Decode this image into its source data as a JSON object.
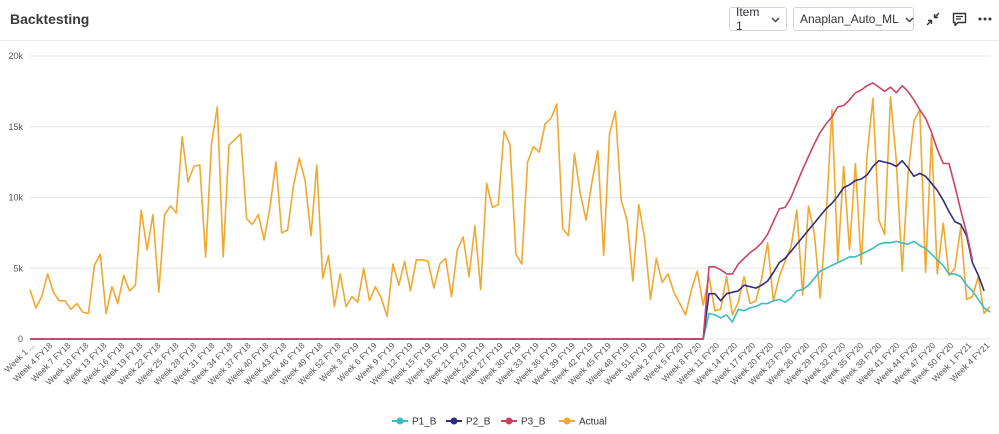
{
  "header": {
    "title": "Backtesting",
    "item_select": {
      "value": "Item 1"
    },
    "model_select": {
      "value": "Anaplan_Auto_ML"
    },
    "icons": [
      "collapse-icon",
      "comment-icon",
      "more-icon"
    ]
  },
  "chart_data": {
    "type": "line",
    "title": "",
    "xlabel": "",
    "ylabel": "",
    "ylim": [
      0,
      20000
    ],
    "y_ticks": [
      0,
      5000,
      10000,
      15000,
      20000
    ],
    "y_tick_labels": [
      "0",
      "5k",
      "10k",
      "15k",
      "20k"
    ],
    "grid": true,
    "legend": "bottom-center",
    "x_tick_labels": [
      "Week 1 ...",
      "Week 4 FY18",
      "Week 7 FY18",
      "Week 10 FY18",
      "Week 13 FY18",
      "Week 16 FY18",
      "Week 19 FY18",
      "Week 22 FY18",
      "Week 25 FY18",
      "Week 28 FY18",
      "Week 31 FY18",
      "Week 34 FY18",
      "Week 37 FY18",
      "Week 40 FY18",
      "Week 43 FY18",
      "Week 46 FY18",
      "Week 49 FY18",
      "Week 52 FY18",
      "Week 3 FY19",
      "Week 6 FY19",
      "Week 9 FY19",
      "Week 12 FY19",
      "Week 15 FY19",
      "Week 18 FY19",
      "Week 21 FY19",
      "Week 24 FY19",
      "Week 27 FY19",
      "Week 30 FY19",
      "Week 33 FY19",
      "Week 36 FY19",
      "Week 39 FY19",
      "Week 42 FY19",
      "Week 45 FY19",
      "Week 48 FY19",
      "Week 51 FY19",
      "Week 2 FY20",
      "Week 5 FY20",
      "Week 8 FY20",
      "Week 11 FY20",
      "Week 14 FY20",
      "Week 17 FY20",
      "Week 20 FY20",
      "Week 23 FY20",
      "Week 26 FY20",
      "Week 29 FY20",
      "Week 32 FY20",
      "Week 35 FY20",
      "Week 38 FY20",
      "Week 41 FY20",
      "Week 44 FY20",
      "Week 47 FY20",
      "Week 50 FY20",
      "Week 1 FY21",
      "Week 4 FY21"
    ],
    "series": [
      {
        "name": "Actual",
        "color": "#f0a830",
        "values": [
          3500,
          2200,
          3000,
          4600,
          3300,
          2700,
          2700,
          2100,
          2500,
          1900,
          1800,
          5200,
          6000,
          1800,
          3700,
          2500,
          4500,
          3400,
          3800,
          9100,
          6300,
          8800,
          3300,
          8800,
          9400,
          8900,
          14300,
          11100,
          12200,
          12300,
          5800,
          13800,
          16400,
          5800,
          13700,
          14100,
          14500,
          8500,
          8100,
          8800,
          7000,
          9300,
          12500,
          7500,
          7700,
          10800,
          12800,
          11200,
          7300,
          12300,
          4300,
          5900,
          2300,
          4600,
          2300,
          3000,
          2600,
          5000,
          2700,
          3700,
          2900,
          1600,
          5300,
          3800,
          5500,
          3400,
          5600,
          5600,
          5500,
          3600,
          5300,
          5700,
          3000,
          6300,
          7200,
          4400,
          8000,
          3500,
          11000,
          9300,
          9500,
          14700,
          13700,
          6000,
          5300,
          12500,
          13600,
          13200,
          15200,
          15600,
          16600,
          7800,
          7300,
          13100,
          10300,
          8400,
          11100,
          13300,
          5900,
          14500,
          16100,
          9800,
          8400,
          4100,
          9500,
          7100,
          2800,
          5700,
          4000,
          4600,
          3300,
          2500,
          1700,
          3500,
          4800,
          2400,
          4400,
          2000,
          2100,
          4400,
          1700,
          2600,
          4400,
          2500,
          2700,
          4300,
          6800,
          2700,
          4400,
          5500,
          6500,
          9100,
          3100,
          9400,
          7400,
          2900,
          8600,
          16200,
          5500,
          12200,
          6300,
          12400,
          5300,
          13000,
          17000,
          8400,
          7400,
          17100,
          12600,
          4800,
          11600,
          15400,
          16200,
          4700,
          14400,
          4600,
          8200,
          4500,
          5000,
          7900,
          2800,
          3000,
          4400,
          1800,
          2300
        ]
      },
      {
        "name": "P1_B",
        "color": "#3bbdc1",
        "values": [
          0,
          0,
          0,
          0,
          0,
          0,
          0,
          0,
          0,
          0,
          0,
          0,
          0,
          0,
          0,
          0,
          0,
          0,
          0,
          0,
          0,
          0,
          0,
          0,
          0,
          0,
          0,
          0,
          0,
          0,
          0,
          0,
          0,
          0,
          0,
          0,
          0,
          0,
          0,
          0,
          0,
          0,
          0,
          0,
          0,
          0,
          0,
          0,
          0,
          0,
          0,
          0,
          0,
          0,
          0,
          0,
          0,
          0,
          0,
          0,
          0,
          0,
          0,
          0,
          0,
          0,
          0,
          0,
          0,
          0,
          0,
          0,
          0,
          0,
          0,
          0,
          0,
          0,
          0,
          0,
          0,
          0,
          0,
          0,
          0,
          0,
          0,
          0,
          0,
          0,
          0,
          0,
          0,
          0,
          0,
          0,
          0,
          0,
          0,
          0,
          0,
          0,
          0,
          0,
          0,
          0,
          0,
          0,
          0,
          0,
          0,
          0,
          0,
          0,
          0,
          0,
          1800,
          1700,
          1500,
          1700,
          1200,
          2100,
          2000,
          2200,
          2300,
          2500,
          2500,
          2700,
          2800,
          2600,
          2900,
          3400,
          3500,
          3800,
          4300,
          4800,
          5000,
          5200,
          5400,
          5600,
          5800,
          5800,
          6000,
          6200,
          6400,
          6700,
          6800,
          6800,
          6900,
          6800,
          6700,
          6900,
          6600,
          6400,
          6000,
          5600,
          5200,
          4600,
          4600,
          4400,
          3800,
          3400,
          2800,
          2200,
          1900
        ]
      },
      {
        "name": "P2_B",
        "color": "#2f2d7a",
        "values": [
          0,
          0,
          0,
          0,
          0,
          0,
          0,
          0,
          0,
          0,
          0,
          0,
          0,
          0,
          0,
          0,
          0,
          0,
          0,
          0,
          0,
          0,
          0,
          0,
          0,
          0,
          0,
          0,
          0,
          0,
          0,
          0,
          0,
          0,
          0,
          0,
          0,
          0,
          0,
          0,
          0,
          0,
          0,
          0,
          0,
          0,
          0,
          0,
          0,
          0,
          0,
          0,
          0,
          0,
          0,
          0,
          0,
          0,
          0,
          0,
          0,
          0,
          0,
          0,
          0,
          0,
          0,
          0,
          0,
          0,
          0,
          0,
          0,
          0,
          0,
          0,
          0,
          0,
          0,
          0,
          0,
          0,
          0,
          0,
          0,
          0,
          0,
          0,
          0,
          0,
          0,
          0,
          0,
          0,
          0,
          0,
          0,
          0,
          0,
          0,
          0,
          0,
          0,
          0,
          0,
          0,
          0,
          0,
          0,
          0,
          0,
          0,
          0,
          0,
          0,
          0,
          3200,
          3200,
          2700,
          3200,
          3300,
          3400,
          3800,
          3700,
          3600,
          3800,
          4100,
          4700,
          5400,
          5700,
          6200,
          6700,
          7200,
          7700,
          8200,
          8700,
          9200,
          9600,
          10100,
          10700,
          10900,
          11200,
          11300,
          11600,
          12200,
          12600,
          12500,
          12400,
          12200,
          12600,
          12100,
          11500,
          11700,
          11500,
          11000,
          10500,
          9800,
          9000,
          8300,
          8100,
          7300,
          5400,
          4500,
          3400
        ]
      },
      {
        "name": "P3_B",
        "color": "#c94463",
        "values": [
          0,
          0,
          0,
          0,
          0,
          0,
          0,
          0,
          0,
          0,
          0,
          0,
          0,
          0,
          0,
          0,
          0,
          0,
          0,
          0,
          0,
          0,
          0,
          0,
          0,
          0,
          0,
          0,
          0,
          0,
          0,
          0,
          0,
          0,
          0,
          0,
          0,
          0,
          0,
          0,
          0,
          0,
          0,
          0,
          0,
          0,
          0,
          0,
          0,
          0,
          0,
          0,
          0,
          0,
          0,
          0,
          0,
          0,
          0,
          0,
          0,
          0,
          0,
          0,
          0,
          0,
          0,
          0,
          0,
          0,
          0,
          0,
          0,
          0,
          0,
          0,
          0,
          0,
          0,
          0,
          0,
          0,
          0,
          0,
          0,
          0,
          0,
          0,
          0,
          0,
          0,
          0,
          0,
          0,
          0,
          0,
          0,
          0,
          0,
          0,
          0,
          0,
          0,
          0,
          0,
          0,
          0,
          0,
          0,
          0,
          0,
          0,
          0,
          0,
          0,
          0,
          5100,
          5100,
          4900,
          4600,
          4600,
          5300,
          5700,
          6100,
          6400,
          6800,
          7400,
          8300,
          9200,
          9300,
          10000,
          11000,
          12000,
          12900,
          13800,
          14600,
          15200,
          15700,
          16400,
          16500,
          16900,
          17400,
          17600,
          17900,
          18100,
          17800,
          17500,
          17800,
          17400,
          17900,
          17500,
          16900,
          16200,
          15600,
          14600,
          13400,
          12400,
          12400,
          10800,
          9100,
          7500,
          5600
        ]
      }
    ]
  },
  "legend": [
    {
      "name": "P1_B",
      "color": "#3bbdc1"
    },
    {
      "name": "P2_B",
      "color": "#2f2d7a"
    },
    {
      "name": "P3_B",
      "color": "#c94463"
    },
    {
      "name": "Actual",
      "color": "#f0a830"
    }
  ]
}
